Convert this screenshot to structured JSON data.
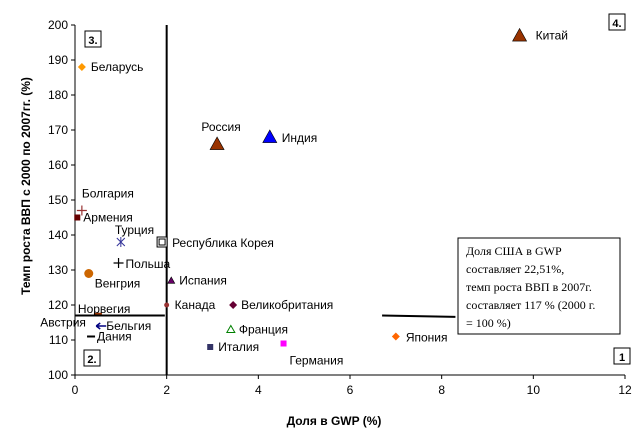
{
  "chart_data": {
    "type": "scatter",
    "xlabel": "Доля в GWP (%)",
    "ylabel": "Темп роста ВВП с 2000 по 2007гг. (%)",
    "xlim": [
      0,
      12
    ],
    "ylim": [
      100,
      200
    ],
    "xticks": [
      0,
      2,
      4,
      6,
      8,
      10,
      12
    ],
    "yticks": [
      100,
      110,
      120,
      130,
      140,
      150,
      160,
      170,
      180,
      190,
      200
    ],
    "grid": false,
    "legend": "none",
    "points": [
      {
        "label": "Китай",
        "x": 9.7,
        "y": 197,
        "marker": "triangle",
        "color": "#993300"
      },
      {
        "label": "Беларусь",
        "x": 0.15,
        "y": 188,
        "marker": "diamond",
        "color": "#ff9900"
      },
      {
        "label": "Россия",
        "x": 3.1,
        "y": 166,
        "marker": "triangle",
        "color": "#993300"
      },
      {
        "label": "Индия",
        "x": 4.25,
        "y": 168,
        "marker": "triangle",
        "color": "#0000ff"
      },
      {
        "label": "Болгария",
        "x": 0.15,
        "y": 147,
        "marker": "plus",
        "color": "#993333"
      },
      {
        "label": "Армения",
        "x": 0.05,
        "y": 145,
        "marker": "square",
        "color": "#660000"
      },
      {
        "label": "Турция",
        "x": 1.0,
        "y": 138,
        "marker": "star",
        "color": "#333399"
      },
      {
        "label": "Республика Корея",
        "x": 1.9,
        "y": 138,
        "marker": "open-square",
        "color": "#000000"
      },
      {
        "label": "Польша",
        "x": 0.95,
        "y": 132,
        "marker": "plus",
        "color": "#000000"
      },
      {
        "label": "Венгрия",
        "x": 0.3,
        "y": 129,
        "marker": "circle",
        "color": "#cc6600"
      },
      {
        "label": "Испания",
        "x": 2.1,
        "y": 127,
        "marker": "triangle",
        "color": "#660066"
      },
      {
        "label": "Норвегия",
        "x": 0.5,
        "y": 117.5,
        "marker": "dash",
        "color": "#993300"
      },
      {
        "label": "Канада",
        "x": 2.0,
        "y": 120,
        "marker": "circle",
        "color": "#993333"
      },
      {
        "label": "Великобритания",
        "x": 3.45,
        "y": 120,
        "marker": "diamond",
        "color": "#660033"
      },
      {
        "label": "Австрия",
        "x": 0.5,
        "y": 117,
        "marker": "dash",
        "color": "#000000"
      },
      {
        "label": "Бельгия",
        "x": 0.55,
        "y": 114,
        "marker": "arrow",
        "color": "#000080"
      },
      {
        "label": "Дания",
        "x": 0.35,
        "y": 111,
        "marker": "dash",
        "color": "#000000"
      },
      {
        "label": "Франция",
        "x": 3.4,
        "y": 113,
        "marker": "open-triangle",
        "color": "#008000"
      },
      {
        "label": "Италия",
        "x": 2.95,
        "y": 108,
        "marker": "square",
        "color": "#333366"
      },
      {
        "label": "Германия",
        "x": 4.55,
        "y": 109,
        "marker": "square",
        "color": "#ff00ff"
      },
      {
        "label": "Япония",
        "x": 7.0,
        "y": 111,
        "marker": "diamond",
        "color": "#ff6600"
      }
    ],
    "quadrants": [
      "1",
      "2.",
      "3.",
      "4."
    ],
    "annotation": [
      "Доля США в GWP",
      "составляет 22,51%,",
      "темп роста ВВП в 2007г.",
      "составляет 117 % (2000 г.",
      "= 100 %)"
    ]
  }
}
